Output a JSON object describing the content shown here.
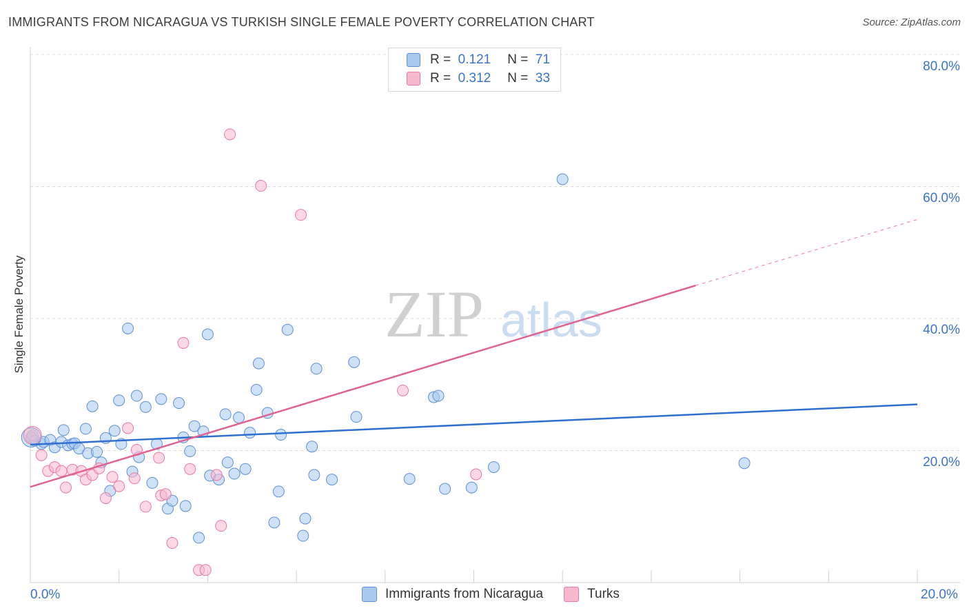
{
  "chart_data": {
    "type": "scatter",
    "title": "IMMIGRANTS FROM NICARAGUA VS TURKISH SINGLE FEMALE POVERTY CORRELATION CHART",
    "source": "Source: ZipAtlas.com",
    "ylabel": "Single Female Poverty",
    "xlabel": "",
    "xlim": [
      0,
      20
    ],
    "ylim": [
      0,
      80
    ],
    "x_tick_labels": [
      "0.0%",
      "20.0%"
    ],
    "y_ticks": [
      20,
      40,
      60,
      80
    ],
    "y_tick_labels": [
      "20.0%",
      "40.0%",
      "60.0%",
      "80.0%"
    ],
    "watermark": {
      "part1": "ZIP",
      "part2": "atlas"
    },
    "legend_top": [
      {
        "r_label": "R =",
        "r_value": "0.121",
        "n_label": "N =",
        "n_value": "71"
      },
      {
        "r_label": "R =",
        "r_value": "0.312",
        "n_label": "N =",
        "n_value": "33"
      }
    ],
    "series": [
      {
        "name": "Immigrants from Nicaragua",
        "color_fill": "#a8c8f0",
        "color_stroke": "#5b8fd6",
        "trend_color": "#2f6fd0",
        "trend": {
          "x0": 0,
          "y0": 20.9,
          "x1": 20,
          "y1": 27.0
        },
        "points": [
          [
            0.02,
            22.0
          ],
          [
            0.1,
            21.5
          ],
          [
            0.25,
            21.0
          ],
          [
            0.3,
            21.3
          ],
          [
            0.45,
            21.6
          ],
          [
            0.55,
            20.5
          ],
          [
            0.7,
            21.3
          ],
          [
            0.75,
            23.1
          ],
          [
            0.85,
            20.8
          ],
          [
            0.95,
            21.0
          ],
          [
            1.0,
            21.1
          ],
          [
            1.1,
            20.3
          ],
          [
            1.25,
            23.3
          ],
          [
            1.3,
            19.6
          ],
          [
            1.4,
            26.7
          ],
          [
            1.5,
            19.8
          ],
          [
            1.6,
            18.2
          ],
          [
            1.7,
            21.9
          ],
          [
            1.8,
            13.9
          ],
          [
            1.9,
            23.0
          ],
          [
            2.0,
            27.6
          ],
          [
            2.05,
            21.0
          ],
          [
            2.2,
            38.5
          ],
          [
            2.3,
            16.8
          ],
          [
            2.4,
            28.3
          ],
          [
            2.45,
            19.0
          ],
          [
            2.6,
            26.6
          ],
          [
            2.75,
            15.1
          ],
          [
            2.85,
            21.0
          ],
          [
            2.95,
            27.8
          ],
          [
            3.1,
            11.2
          ],
          [
            3.2,
            12.4
          ],
          [
            3.35,
            27.2
          ],
          [
            3.45,
            22.0
          ],
          [
            3.5,
            11.6
          ],
          [
            3.6,
            19.9
          ],
          [
            3.7,
            23.7
          ],
          [
            3.8,
            6.8
          ],
          [
            3.9,
            22.9
          ],
          [
            4.0,
            37.6
          ],
          [
            4.05,
            16.2
          ],
          [
            4.25,
            15.6
          ],
          [
            4.45,
            18.2
          ],
          [
            4.4,
            25.5
          ],
          [
            4.6,
            16.5
          ],
          [
            4.7,
            25.0
          ],
          [
            4.85,
            17.2
          ],
          [
            4.95,
            22.7
          ],
          [
            5.1,
            29.2
          ],
          [
            5.15,
            33.2
          ],
          [
            5.35,
            25.7
          ],
          [
            5.5,
            9.1
          ],
          [
            5.6,
            13.8
          ],
          [
            5.65,
            22.4
          ],
          [
            5.8,
            38.3
          ],
          [
            6.15,
            7.1
          ],
          [
            6.2,
            9.7
          ],
          [
            6.35,
            20.6
          ],
          [
            6.4,
            16.3
          ],
          [
            6.45,
            32.4
          ],
          [
            6.8,
            15.6
          ],
          [
            7.3,
            33.4
          ],
          [
            7.35,
            25.1
          ],
          [
            8.55,
            15.7
          ],
          [
            9.1,
            28.1
          ],
          [
            9.2,
            28.3
          ],
          [
            9.35,
            14.2
          ],
          [
            9.95,
            14.4
          ],
          [
            10.45,
            17.5
          ],
          [
            12.0,
            61.1
          ],
          [
            16.1,
            18.1
          ]
        ]
      },
      {
        "name": "Turks",
        "color_fill": "#f7b8cd",
        "color_stroke": "#e87a9e",
        "trend_color": "#e0638f",
        "trend": {
          "x0": 0,
          "y0": 14.5,
          "x1": 15.0,
          "y1": 45.0
        },
        "trend_ext": {
          "x0": 15.0,
          "y0": 45.0,
          "x1": 20.0,
          "y1": 55.0
        },
        "points": [
          [
            0.05,
            22.3
          ],
          [
            0.25,
            19.3
          ],
          [
            0.4,
            16.9
          ],
          [
            0.55,
            17.5
          ],
          [
            0.7,
            16.9
          ],
          [
            0.8,
            14.4
          ],
          [
            0.95,
            17.1
          ],
          [
            1.15,
            16.9
          ],
          [
            1.25,
            15.6
          ],
          [
            1.4,
            16.3
          ],
          [
            1.55,
            17.3
          ],
          [
            1.7,
            12.8
          ],
          [
            1.85,
            16.0
          ],
          [
            2.0,
            14.6
          ],
          [
            2.2,
            23.4
          ],
          [
            2.35,
            15.8
          ],
          [
            2.4,
            20.1
          ],
          [
            2.6,
            11.5
          ],
          [
            2.9,
            18.9
          ],
          [
            2.95,
            13.2
          ],
          [
            3.05,
            13.4
          ],
          [
            3.2,
            6.0
          ],
          [
            3.45,
            36.3
          ],
          [
            3.6,
            17.2
          ],
          [
            3.8,
            1.9
          ],
          [
            3.95,
            1.9
          ],
          [
            4.2,
            16.3
          ],
          [
            4.3,
            8.6
          ],
          [
            4.5,
            67.9
          ],
          [
            5.2,
            60.1
          ],
          [
            6.1,
            55.7
          ],
          [
            8.4,
            29.1
          ],
          [
            10.05,
            16.4
          ]
        ]
      }
    ]
  }
}
